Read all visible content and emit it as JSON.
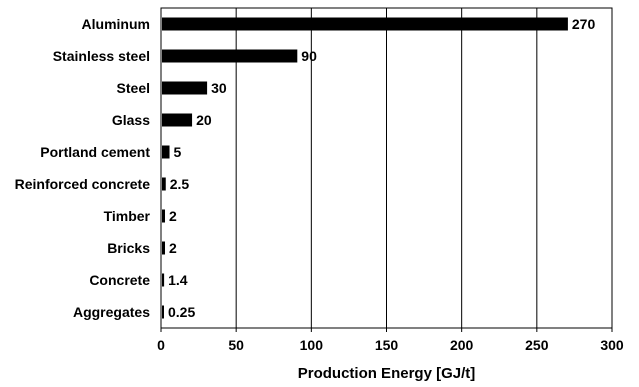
{
  "chart_data": {
    "type": "bar",
    "orientation": "horizontal",
    "categories": [
      "Aluminum",
      "Stainless steel",
      "Steel",
      "Glass",
      "Portland cement",
      "Reinforced concrete",
      "Timber",
      "Bricks",
      "Concrete",
      "Aggregates"
    ],
    "values": [
      270,
      90,
      30,
      20,
      5,
      2.5,
      2,
      2,
      1.4,
      0.25
    ],
    "data_labels": [
      "270",
      "90",
      "30",
      "20",
      "5",
      "2.5",
      "2",
      "2",
      "1.4",
      "0.25"
    ],
    "xlabel": "Production Energy [GJ/t]",
    "ylabel": "",
    "xlim": [
      0,
      300
    ],
    "xticks": [
      "0",
      "50",
      "100",
      "150",
      "200",
      "250",
      "300"
    ],
    "grid": "vertical",
    "bar_color": "#000000"
  }
}
